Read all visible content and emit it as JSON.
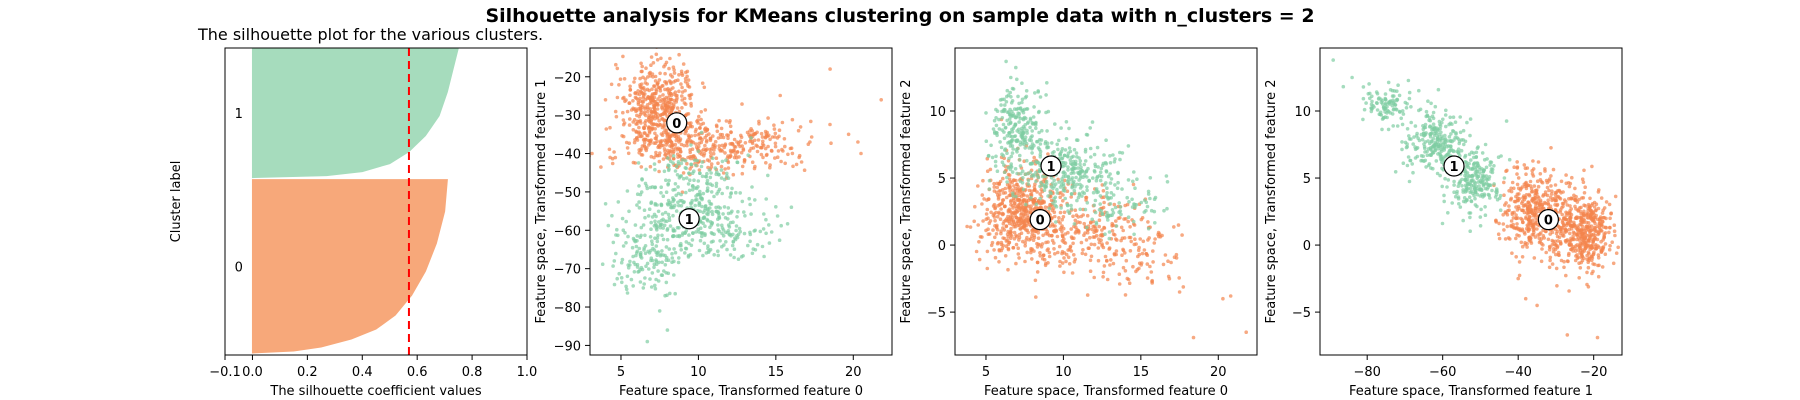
{
  "figure": {
    "title": "Silhouette analysis for KMeans clustering on sample data with n_clusters = 2"
  },
  "colors": {
    "cluster_0": "#f4854d",
    "cluster_0_fill": "#f7a87a",
    "cluster_1": "#7fcda3",
    "cluster_1_fill": "#a6dcbd",
    "average_line": "#ff0000"
  },
  "chart_data": [
    {
      "type": "area",
      "title": "The silhouette plot for the various clusters.",
      "xlabel": "The silhouette coefficient values",
      "ylabel": "Cluster label",
      "xlim": [
        -0.1,
        1.0
      ],
      "ylim": [
        0,
        1540
      ],
      "xticks": [
        -0.1,
        0.0,
        0.2,
        0.4,
        0.6,
        0.8,
        1.0
      ],
      "xtick_labels": [
        "−0.1",
        "0.0",
        "0.2",
        "0.4",
        "0.6",
        "0.8",
        "1.0"
      ],
      "grid": false,
      "average_silhouette": 0.57,
      "clusters": [
        {
          "label": "0",
          "y_range": [
            10,
            880
          ],
          "profile": [
            [
              10,
              0.0
            ],
            [
              20,
              0.15
            ],
            [
              40,
              0.25
            ],
            [
              80,
              0.36
            ],
            [
              130,
              0.45
            ],
            [
              200,
              0.52
            ],
            [
              300,
              0.58
            ],
            [
              420,
              0.63
            ],
            [
              560,
              0.67
            ],
            [
              720,
              0.7
            ],
            [
              880,
              0.71
            ]
          ]
        },
        {
          "label": "1",
          "y_range": [
            890,
            1540
          ],
          "profile": [
            [
              890,
              0.0
            ],
            [
              900,
              0.27
            ],
            [
              920,
              0.4
            ],
            [
              960,
              0.5
            ],
            [
              1020,
              0.57
            ],
            [
              1100,
              0.63
            ],
            [
              1200,
              0.68
            ],
            [
              1320,
              0.71
            ],
            [
              1430,
              0.73
            ],
            [
              1540,
              0.75
            ]
          ]
        }
      ]
    },
    {
      "type": "scatter",
      "xlabel": "Feature space, Transformed feature 0",
      "ylabel": "Feature space, Transformed feature 1",
      "xlim": [
        3,
        22.5
      ],
      "ylim": [
        -92.5,
        -12.5
      ],
      "xticks": [
        5,
        10,
        15,
        20
      ],
      "yticks": [
        -90,
        -80,
        -70,
        -60,
        -50,
        -40,
        -30,
        -20
      ],
      "grid": false,
      "centers": [
        {
          "label": "0",
          "x": 8.6,
          "y": -32
        },
        {
          "label": "1",
          "x": 9.4,
          "y": -57
        }
      ],
      "clusters": [
        {
          "label": "0",
          "blobs": [
            {
              "cx": 7.3,
              "cy": -28,
              "sx": 1.2,
              "sy": 6,
              "n": 450
            },
            {
              "cx": 9.5,
              "cy": -38,
              "sx": 2.5,
              "sy": 3.5,
              "n": 300
            },
            {
              "cx": 13.5,
              "cy": -38,
              "sx": 2.0,
              "sy": 3,
              "n": 120
            }
          ],
          "outliers": [
            [
              18.5,
              -18
            ],
            [
              19.7,
              -35
            ],
            [
              20.3,
              -37
            ],
            [
              20.5,
              -40
            ],
            [
              21.8,
              -26
            ],
            [
              16.5,
              -41
            ],
            [
              17.2,
              -37
            ],
            [
              4,
              -26
            ],
            [
              4.3,
              -41
            ]
          ]
        },
        {
          "label": "1",
          "blobs": [
            {
              "cx": 9.5,
              "cy": -53,
              "sx": 2.0,
              "sy": 6,
              "n": 360
            },
            {
              "cx": 7.0,
              "cy": -67,
              "sx": 1.2,
              "sy": 5,
              "n": 160
            },
            {
              "cx": 12.0,
              "cy": -62,
              "sx": 1.8,
              "sy": 3,
              "n": 80
            }
          ],
          "outliers": [
            [
              6.7,
              -89
            ],
            [
              7.5,
              -81
            ],
            [
              8.0,
              -86
            ],
            [
              6.5,
              -74
            ]
          ]
        }
      ]
    },
    {
      "type": "scatter",
      "xlabel": "Feature space, Transformed feature 0",
      "ylabel": "Feature space, Transformed feature 2",
      "xlim": [
        3,
        22.5
      ],
      "ylim": [
        -8.2,
        14.7
      ],
      "xticks": [
        5,
        10,
        15,
        20
      ],
      "yticks": [
        -5,
        0,
        5,
        10
      ],
      "grid": false,
      "centers": [
        {
          "label": "0",
          "x": 8.5,
          "y": 1.9
        },
        {
          "label": "1",
          "x": 9.2,
          "y": 5.9
        }
      ],
      "clusters": [
        {
          "label": "0",
          "blobs": [
            {
              "cx": 7.3,
              "cy": 2.5,
              "sx": 1.2,
              "sy": 1.8,
              "n": 560
            },
            {
              "cx": 11.5,
              "cy": 1.0,
              "sx": 2.0,
              "sy": 1.5,
              "n": 220
            },
            {
              "cx": 15.0,
              "cy": -0.8,
              "sx": 1.6,
              "sy": 1.4,
              "n": 80
            }
          ],
          "outliers": [
            [
              20.3,
              -4.0
            ],
            [
              20.8,
              -3.8
            ],
            [
              21.8,
              -6.5
            ],
            [
              18.4,
              -6.9
            ],
            [
              17.5,
              -3.5
            ],
            [
              4.5,
              1.5
            ],
            [
              4.8,
              4.8
            ]
          ]
        },
        {
          "label": "1",
          "blobs": [
            {
              "cx": 7.0,
              "cy": 9.0,
              "sx": 0.9,
              "sy": 1.6,
              "n": 220
            },
            {
              "cx": 10.2,
              "cy": 5.5,
              "sx": 1.8,
              "sy": 1.4,
              "n": 320
            },
            {
              "cx": 13.5,
              "cy": 3.0,
              "sx": 1.4,
              "sy": 1.3,
              "n": 80
            }
          ],
          "outliers": [
            [
              6.3,
              13.7
            ],
            [
              6.6,
              12.5
            ],
            [
              15.5,
              4.0
            ]
          ]
        }
      ]
    },
    {
      "type": "scatter",
      "xlabel": "Feature space, Transformed feature 1",
      "ylabel": "Feature space, Transformed feature 2",
      "xlim": [
        -92.5,
        -12.5
      ],
      "ylim": [
        -8.2,
        14.7
      ],
      "xticks": [
        -80,
        -60,
        -40,
        -20
      ],
      "yticks": [
        -5,
        0,
        5,
        10
      ],
      "grid": false,
      "centers": [
        {
          "label": "0",
          "x": -32,
          "y": 1.9
        },
        {
          "label": "1",
          "x": -57,
          "y": 5.9
        }
      ],
      "clusters": [
        {
          "label": "0",
          "blobs": [
            {
              "cx": -36,
              "cy": 2.6,
              "sx": 4.0,
              "sy": 1.6,
              "n": 380
            },
            {
              "cx": -25,
              "cy": 1.2,
              "sx": 4.5,
              "sy": 1.5,
              "n": 380
            },
            {
              "cx": -20,
              "cy": 0.8,
              "sx": 2.5,
              "sy": 1.3,
              "n": 120
            }
          ],
          "outliers": [
            [
              -38,
              -4.0
            ],
            [
              -35,
              -4.5
            ],
            [
              -27,
              -6.7
            ],
            [
              -19,
              -6.9
            ],
            [
              -40,
              -2.5
            ]
          ]
        },
        {
          "label": "1",
          "blobs": [
            {
              "cx": -75,
              "cy": 10.5,
              "sx": 3.5,
              "sy": 0.8,
              "n": 100
            },
            {
              "cx": -62,
              "cy": 7.8,
              "sx": 4.0,
              "sy": 1.2,
              "n": 240
            },
            {
              "cx": -52,
              "cy": 4.8,
              "sx": 3.5,
              "sy": 1.3,
              "n": 240
            }
          ],
          "outliers": [
            [
              -89,
              13.8
            ],
            [
              -84,
              12.5
            ],
            [
              -81,
              11.8
            ]
          ]
        }
      ]
    }
  ]
}
